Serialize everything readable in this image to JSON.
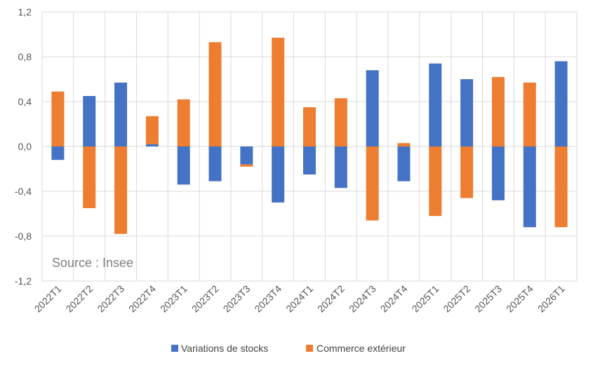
{
  "chart_data": {
    "type": "bar",
    "stacked": true,
    "categories": [
      "2022T1",
      "2022T2",
      "2022T3",
      "2022T4",
      "2023T1",
      "2023T2",
      "2023T3",
      "2023T4",
      "2024T1",
      "2024T2",
      "2024T3",
      "2024T4",
      "2025T1",
      "2025T2",
      "2025T3",
      "2025T4",
      "2026T1"
    ],
    "series": [
      {
        "name": "Variations de stocks",
        "color": "#4472C4",
        "values": [
          -0.12,
          0.45,
          0.57,
          0.02,
          -0.34,
          -0.31,
          -0.16,
          -0.5,
          -0.25,
          -0.37,
          0.68,
          -0.31,
          0.74,
          0.6,
          -0.48,
          -0.72,
          0.76
        ]
      },
      {
        "name": "Commerce extérieur",
        "color": "#ED7D31",
        "values": [
          0.49,
          -0.55,
          -0.78,
          0.25,
          0.42,
          0.93,
          -0.02,
          0.97,
          0.35,
          0.43,
          -0.66,
          0.03,
          -0.62,
          -0.46,
          0.62,
          0.57,
          -0.72
        ]
      }
    ],
    "ylim": [
      -1.2,
      1.2
    ],
    "yticks": [
      "1,2",
      "0,8",
      "0,4",
      "0,0",
      "-0,4",
      "-0,8",
      "-1,2"
    ],
    "ytick_values": [
      1.2,
      0.8,
      0.4,
      0.0,
      -0.4,
      -0.8,
      -1.2
    ],
    "grid": true,
    "legend_position": "bottom",
    "annotation": "Source : Insee",
    "title": "",
    "xlabel": "",
    "ylabel": ""
  }
}
